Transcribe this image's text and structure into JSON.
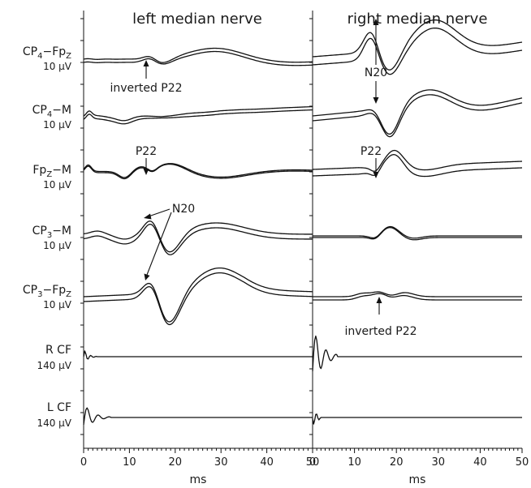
{
  "panels": [
    {
      "title": "left median nerve"
    },
    {
      "title": "right median nerve"
    }
  ],
  "channels": [
    {
      "main": "CP",
      "sub1": "4",
      "mid": "−Fp",
      "sub2": "Z",
      "gain": "10 µV"
    },
    {
      "main": "CP",
      "sub1": "4",
      "mid": "−M",
      "sub2": "",
      "gain": "10 µV"
    },
    {
      "main": "Fp",
      "sub1": "Z",
      "mid": "−M",
      "sub2": "",
      "gain": "10 µV"
    },
    {
      "main": "CP",
      "sub1": "3",
      "mid": "−M",
      "sub2": "",
      "gain": "10 µV"
    },
    {
      "main": "CP",
      "sub1": "3",
      "mid": "−Fp",
      "sub2": "Z",
      "gain": "10 µV"
    },
    {
      "main": "R CF",
      "sub1": "",
      "mid": "",
      "sub2": "",
      "gain": "140 µV"
    },
    {
      "main": "L CF",
      "sub1": "",
      "mid": "",
      "sub2": "",
      "gain": "140 µV"
    }
  ],
  "x_axis": {
    "ticks": [
      0,
      10,
      20,
      30,
      40,
      50
    ],
    "tick_labels": [
      "0",
      "10",
      "20",
      "30",
      "40",
      "50"
    ],
    "label": "ms",
    "range": [
      0,
      50
    ]
  },
  "annotations": {
    "left_inverted_p22": "inverted P22",
    "left_p22": "P22",
    "left_n20": "N20",
    "right_n20": "N20",
    "right_p22": "P22",
    "right_inverted_p22": "inverted P22"
  }
}
